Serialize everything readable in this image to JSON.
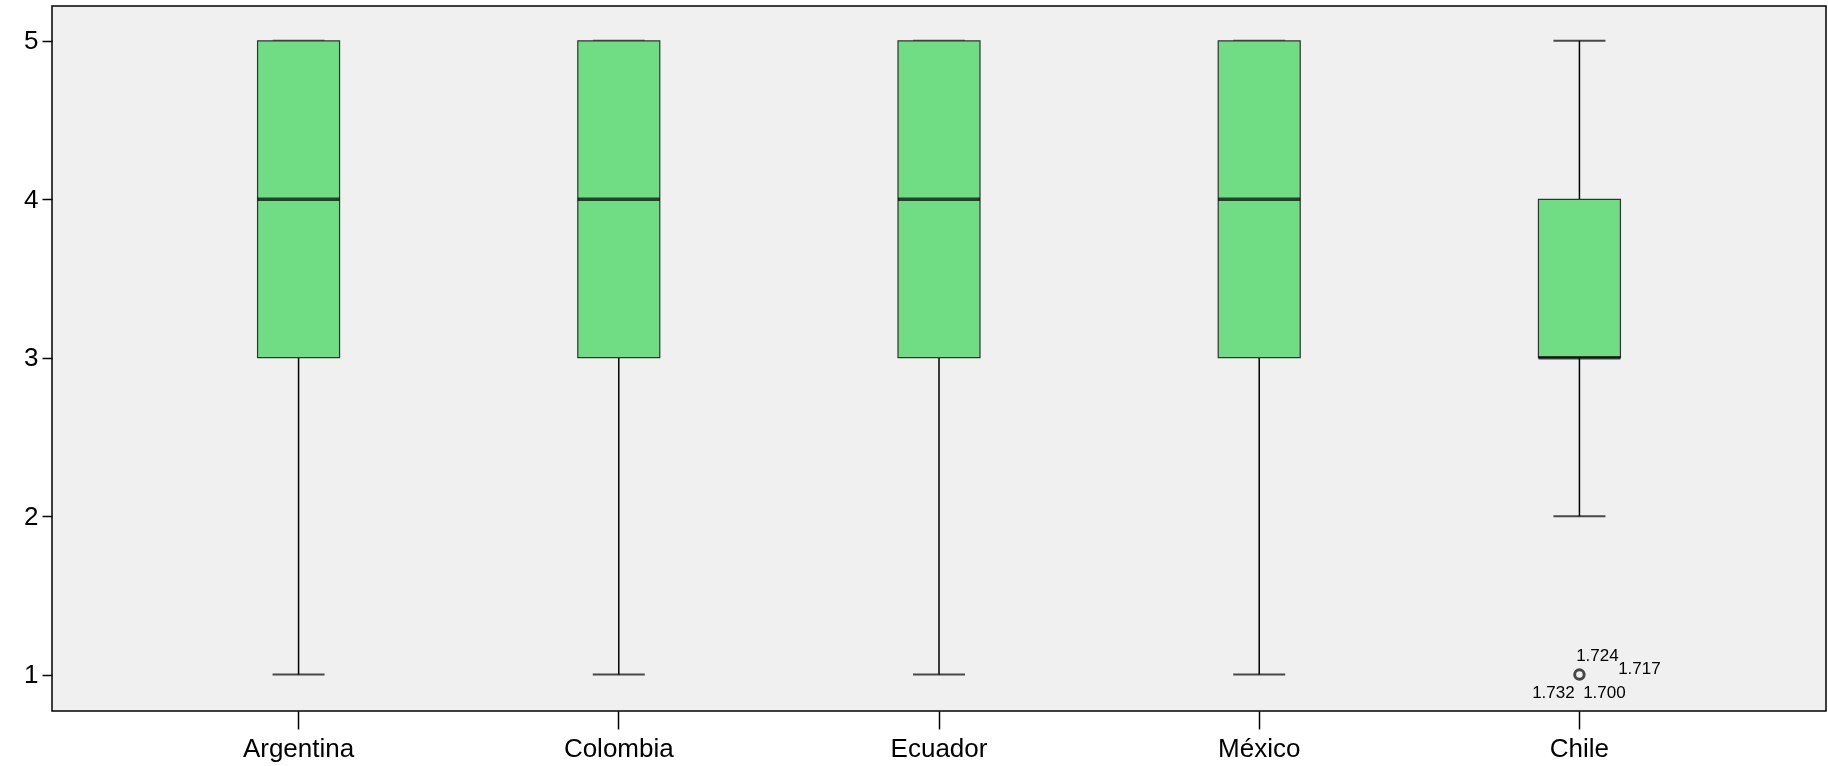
{
  "chart_data": {
    "type": "box",
    "categories": [
      "Argentina",
      "Colombia",
      "Ecuador",
      "México",
      "Chile"
    ],
    "color": "#70dd85",
    "boxes": [
      {
        "low": 1,
        "q1": 3,
        "median": 4,
        "q3": 5,
        "high": 5
      },
      {
        "low": 1,
        "q1": 3,
        "median": 4,
        "q3": 5,
        "high": 5
      },
      {
        "low": 1,
        "q1": 3,
        "median": 4,
        "q3": 5,
        "high": 5
      },
      {
        "low": 1,
        "q1": 3,
        "median": 4,
        "q3": 5,
        "high": 5
      },
      {
        "low": 2,
        "q1": 3,
        "median": 3,
        "q3": 4,
        "high": 5,
        "outliers": [
          1
        ]
      }
    ],
    "ylim": [
      0.77,
      5.22
    ],
    "yticks": [
      1,
      2,
      3,
      4,
      5
    ],
    "annotations": [
      "1.724",
      "1.717",
      "1.732",
      "1.700"
    ]
  }
}
